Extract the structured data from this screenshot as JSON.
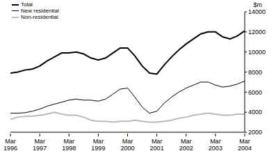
{
  "chart_data": {
    "type": "line",
    "y_label": "$m",
    "legend": "upper left",
    "grid": false,
    "categories": [
      "Mar 1996",
      null,
      null,
      null,
      "Mar 1997",
      null,
      null,
      null,
      "Mar 1998",
      null,
      null,
      null,
      "Mar 1999",
      null,
      null,
      null,
      "Mar 2000",
      null,
      null,
      null,
      "Mar 2001",
      null,
      null,
      null,
      "Mar 2002",
      null,
      null,
      null,
      "Mar 2003",
      null,
      null,
      null,
      "Mar 2004"
    ],
    "ylim": [
      2000,
      14000
    ],
    "yticks": [
      2000,
      4000,
      6000,
      8000,
      10000,
      12000,
      14000
    ],
    "series": [
      {
        "name": "Total",
        "color": "#000000",
        "values": [
          7900,
          8000,
          8200,
          8300,
          8600,
          9100,
          9500,
          9900,
          9900,
          10000,
          9800,
          9400,
          9200,
          9400,
          9900,
          10400,
          10400,
          9600,
          8600,
          7900,
          7800,
          8700,
          9500,
          10200,
          10800,
          11300,
          11800,
          12000,
          12000,
          11500,
          11300,
          11600,
          12100
        ]
      },
      {
        "name": "New residential",
        "color": "#000000",
        "values": [
          3900,
          3900,
          3950,
          4100,
          4300,
          4600,
          4800,
          5000,
          5200,
          5300,
          5200,
          5200,
          5100,
          5300,
          5800,
          6300,
          6400,
          5500,
          4500,
          3900,
          4100,
          4900,
          5500,
          6000,
          6400,
          6700,
          7000,
          7000,
          6700,
          6500,
          6600,
          6800,
          7100
        ]
      },
      {
        "name": "Non-residential",
        "color": "#bbbbbb",
        "values": [
          3300,
          3500,
          3600,
          3600,
          3700,
          3800,
          4000,
          3800,
          3700,
          3700,
          3500,
          3200,
          3100,
          3100,
          3000,
          3100,
          3100,
          3200,
          3100,
          3000,
          3000,
          3100,
          3200,
          3400,
          3500,
          3700,
          3800,
          3900,
          3800,
          3700,
          3700,
          3800,
          3800
        ]
      }
    ]
  }
}
